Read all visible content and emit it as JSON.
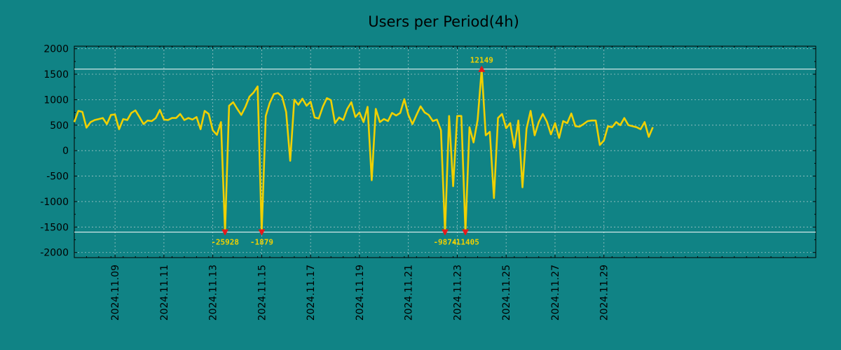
{
  "chart_data": {
    "type": "line",
    "title": "Users per Period(4h)",
    "xlabel": "",
    "ylabel": "",
    "ylim": [
      -2100,
      2050
    ],
    "xlim": [
      0,
      182
    ],
    "yticks": [
      2000,
      1500,
      1000,
      500,
      0,
      -500,
      -1000,
      -1500,
      -2000
    ],
    "ytick_labels": [
      "2000",
      "1500",
      "1000",
      "500",
      "0",
      "-500",
      "-1000",
      "-1500",
      "-2000"
    ],
    "xticks": [
      {
        "x": 10,
        "label": "2024.11.09"
      },
      {
        "x": 22,
        "label": "2024.11.11"
      },
      {
        "x": 34,
        "label": "2024.11.13"
      },
      {
        "x": 46,
        "label": "2024.11.15"
      },
      {
        "x": 58,
        "label": "2024.11.17"
      },
      {
        "x": 70,
        "label": "2024.11.19"
      },
      {
        "x": 82,
        "label": "2024.11.21"
      },
      {
        "x": 94,
        "label": "2024.11.23"
      },
      {
        "x": 106,
        "label": "2024.11.25"
      },
      {
        "x": 118,
        "label": "2024.11.27"
      },
      {
        "x": 130,
        "label": "2024.11.29"
      }
    ],
    "grid": true,
    "ref_lines": [
      1600,
      -1600
    ],
    "series": [
      {
        "name": "Users",
        "color": "#f0d000",
        "values": [
          560,
          780,
          760,
          450,
          560,
          600,
          620,
          640,
          520,
          700,
          710,
          420,
          620,
          600,
          740,
          790,
          660,
          520,
          590,
          580,
          640,
          800,
          610,
          600,
          640,
          640,
          720,
          600,
          640,
          610,
          660,
          420,
          780,
          720,
          400,
          310,
          560,
          -1600,
          880,
          950,
          820,
          700,
          860,
          1060,
          1140,
          1260,
          -1600,
          680,
          940,
          1110,
          1130,
          1060,
          760,
          -200,
          1000,
          900,
          1020,
          880,
          960,
          650,
          630,
          860,
          1030,
          990,
          540,
          650,
          600,
          820,
          950,
          660,
          750,
          560,
          860,
          -580,
          820,
          560,
          620,
          580,
          740,
          690,
          740,
          1010,
          700,
          520,
          700,
          870,
          750,
          700,
          580,
          610,
          400,
          -1600,
          680,
          -700,
          680,
          680,
          -1600,
          460,
          160,
          600,
          1600,
          300,
          370,
          -930,
          640,
          720,
          440,
          540,
          60,
          590,
          -720,
          430,
          780,
          300,
          560,
          720,
          570,
          320,
          540,
          250,
          580,
          540,
          730,
          480,
          470,
          520,
          580,
          590,
          590,
          110,
          200,
          480,
          460,
          560,
          500,
          640,
          500,
          480,
          460,
          420,
          560,
          270,
          460
        ]
      }
    ],
    "markers": [
      {
        "index": 37,
        "value": -1600,
        "kind": "min",
        "label": "-25928"
      },
      {
        "index": 46,
        "value": -1600,
        "kind": "min",
        "label": "-1879"
      },
      {
        "index": 91,
        "value": -1600,
        "kind": "min",
        "label": "-9874"
      },
      {
        "index": 96,
        "value": -1600,
        "kind": "min",
        "label": "-11405"
      },
      {
        "index": 100,
        "value": 1600,
        "kind": "max",
        "label": "12149"
      }
    ],
    "colors": {
      "background": "#108385",
      "line": "#f0d000",
      "marker": "#e41a1c",
      "annotation": "#f0d000",
      "grid": "#d2dcdc",
      "ref_line": "#ffffff"
    }
  }
}
